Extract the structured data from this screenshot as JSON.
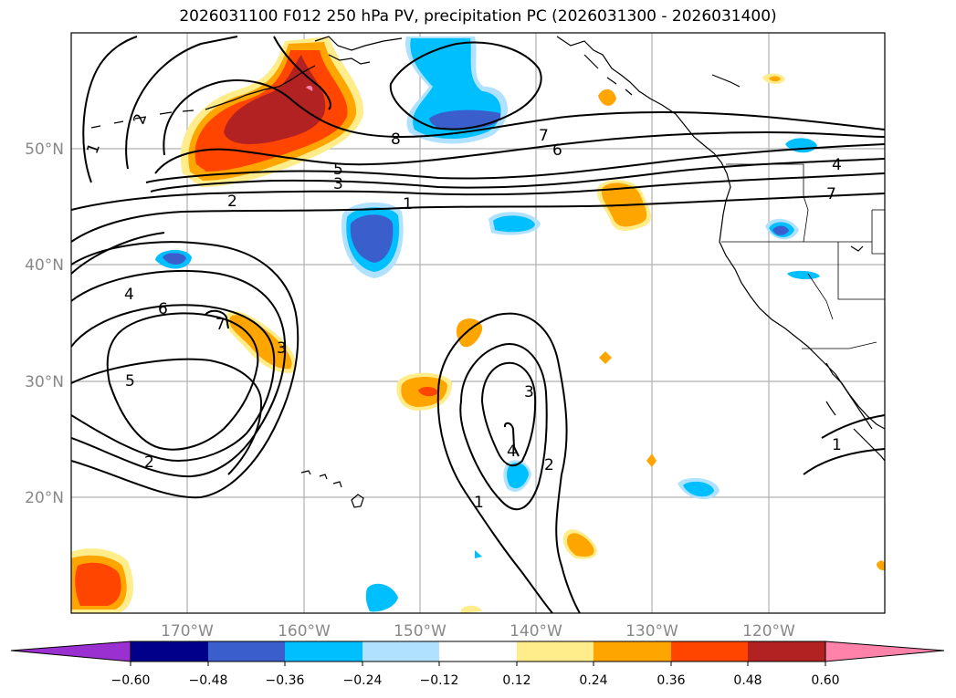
{
  "title": "2026031100 F012 250 hPa PV, precipitation PC (2026031300 - 2026031400)",
  "lat_labels": [
    "50°N",
    "40°N",
    "30°N",
    "20°N"
  ],
  "lon_labels": [
    "170°W",
    "160°W",
    "150°W",
    "140°W",
    "130°W",
    "120°W"
  ],
  "colorbar": {
    "ticks": [
      "−0.60",
      "−0.48",
      "−0.36",
      "−0.24",
      "−0.12",
      "0.12",
      "0.24",
      "0.36",
      "0.48",
      "0.60"
    ],
    "colors": [
      "#9b30d0",
      "#00008b",
      "#3a5fcd",
      "#00bfff",
      "#b0e2ff",
      "#ffffff",
      "#ffec8b",
      "#ffa500",
      "#ff4500",
      "#b22222",
      "#ff82ab",
      "#ff82ab"
    ]
  },
  "contour_labels": [
    {
      "text": "1"
    },
    {
      "text": "2"
    },
    {
      "text": "8"
    },
    {
      "text": "5"
    },
    {
      "text": "3"
    },
    {
      "text": "2"
    },
    {
      "text": "1"
    },
    {
      "text": "7"
    },
    {
      "text": "6"
    },
    {
      "text": "4"
    },
    {
      "text": "4"
    },
    {
      "text": "6"
    },
    {
      "text": "7"
    },
    {
      "text": "3"
    },
    {
      "text": "5"
    },
    {
      "text": "2"
    },
    {
      "text": "3"
    },
    {
      "text": "4"
    },
    {
      "text": "2"
    },
    {
      "text": "1"
    },
    {
      "text": "1"
    },
    {
      "text": "7"
    }
  ]
}
